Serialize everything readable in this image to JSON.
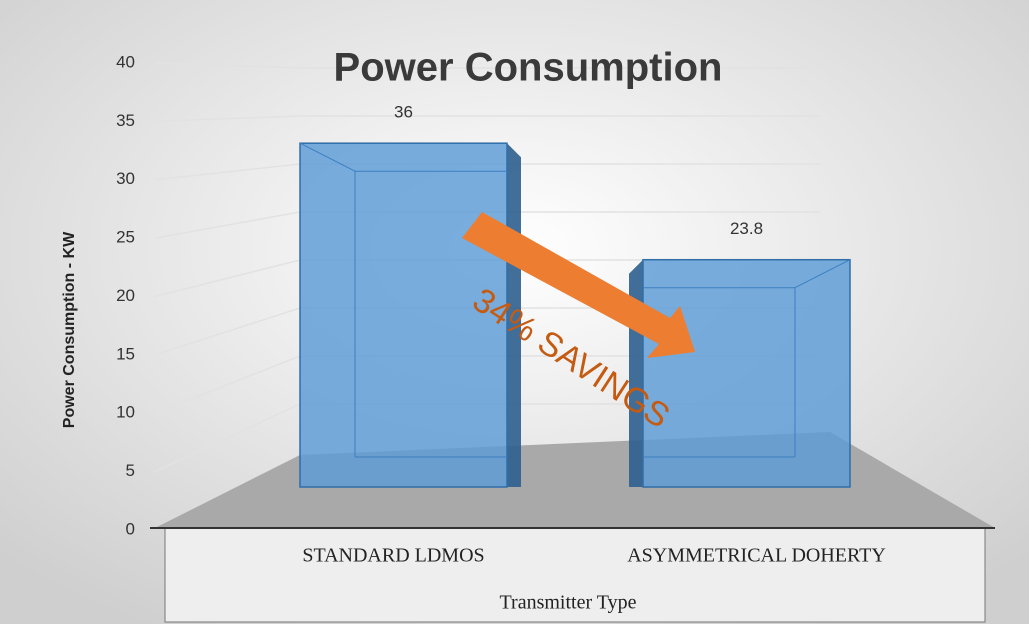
{
  "chart_data": {
    "type": "bar",
    "title": "Power Consumption",
    "categories": [
      "STANDARD LDMOS",
      "ASYMMETRICAL DOHERTY"
    ],
    "values": [
      36,
      23.8
    ],
    "color": "#5b9bd5",
    "ylim": [
      0,
      40
    ],
    "yticks": [
      0,
      5,
      10,
      15,
      20,
      25,
      30,
      35,
      40
    ],
    "grid": true,
    "y_label": "Power Consumption - KW",
    "x_label": "Transmitter Type",
    "annotation": "34% SAVINGS"
  }
}
